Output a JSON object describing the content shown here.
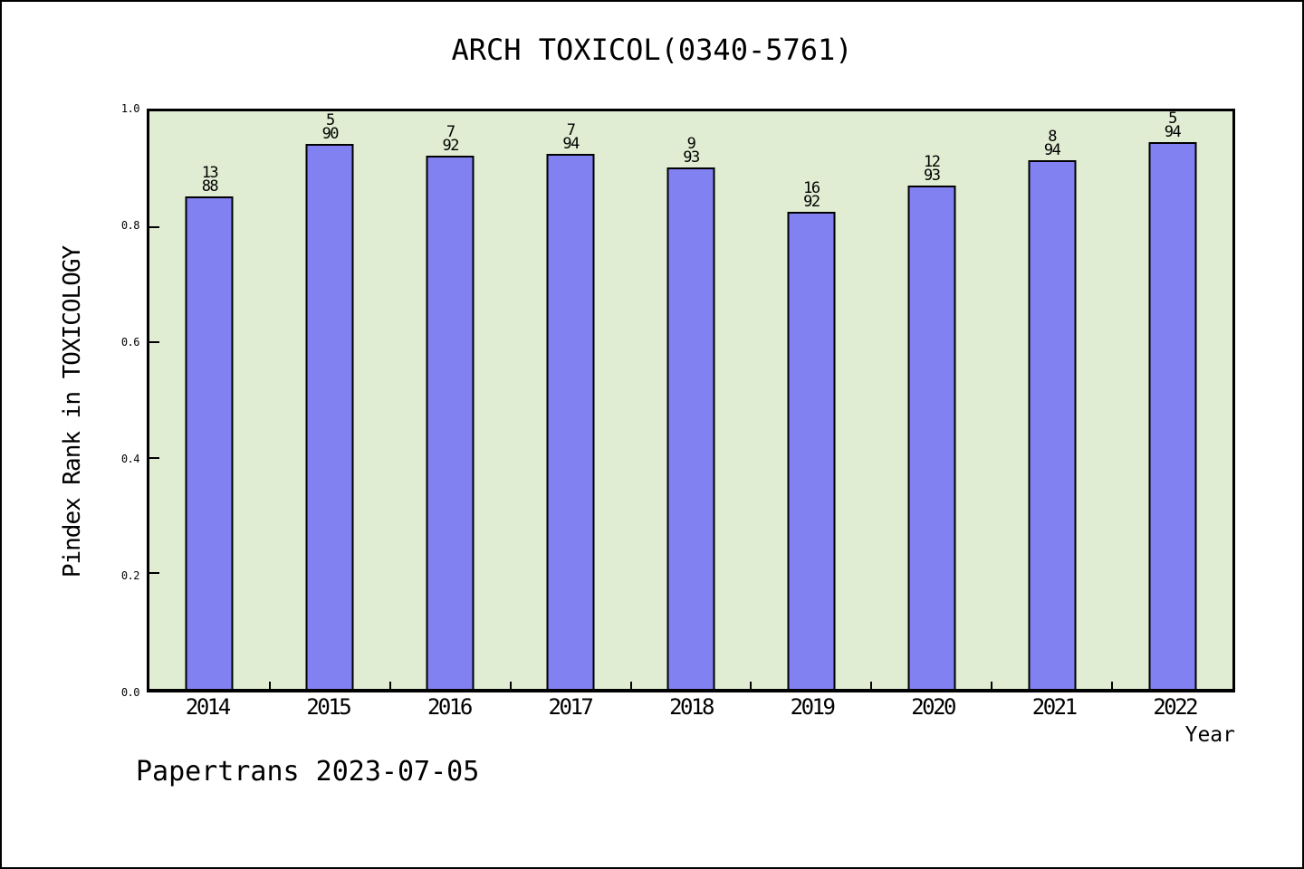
{
  "page": {
    "background": "#ffffff",
    "border_color": "#000000"
  },
  "chart_data": {
    "type": "bar",
    "title": "ARCH TOXICOL(0340-5761)",
    "xlabel": "Year",
    "ylabel": "Pindex Rank in TOXICOLOGY",
    "footer": "Papertrans 2023-07-05",
    "categories": [
      "2014",
      "2015",
      "2016",
      "2017",
      "2018",
      "2019",
      "2020",
      "2021",
      "2022"
    ],
    "values": [
      0.852,
      0.944,
      0.924,
      0.926,
      0.903,
      0.826,
      0.871,
      0.915,
      0.947
    ],
    "bar_top_labels": [
      "13",
      "5",
      "7",
      "7",
      "9",
      "16",
      "12",
      "8",
      "5"
    ],
    "bar_bottom_labels": [
      "88",
      "90",
      "92",
      "94",
      "93",
      "92",
      "93",
      "94",
      "94"
    ],
    "yticks": [
      {
        "label": "0.0",
        "value": 0.0
      },
      {
        "label": "0.2",
        "value": 0.2
      },
      {
        "label": "0.4",
        "value": 0.4
      },
      {
        "label": "0.6",
        "value": 0.6
      },
      {
        "label": "0.8",
        "value": 0.8
      },
      {
        "label": "1.0",
        "value": 1.0
      }
    ],
    "ylim": [
      0,
      1
    ],
    "grid": "off",
    "legend": "none",
    "bar_color": "#8181f2",
    "bar_edge_color": "#000000",
    "plot_background": "#e0edd2"
  }
}
